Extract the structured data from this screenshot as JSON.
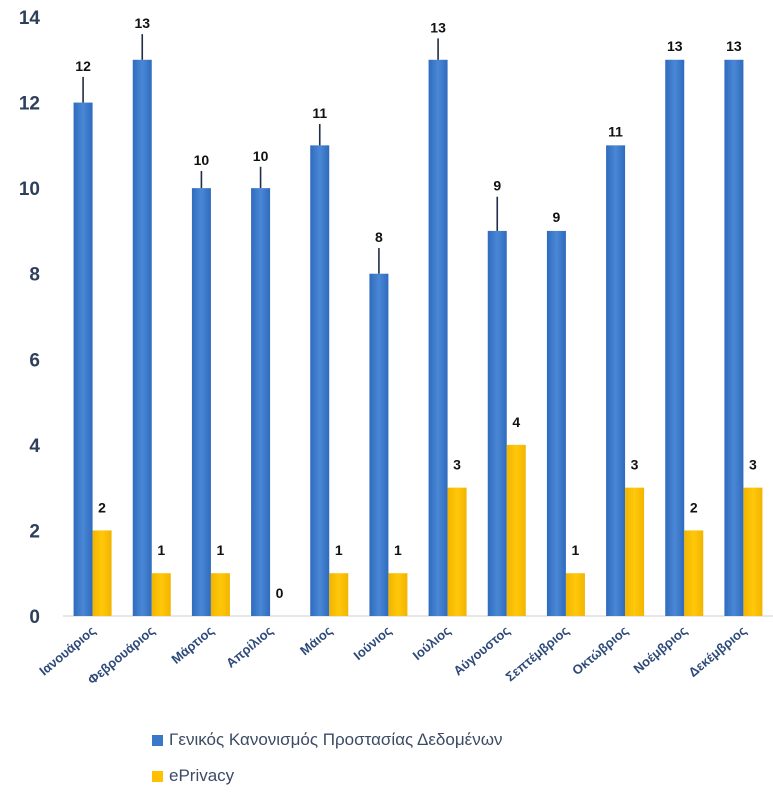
{
  "chart_data": {
    "type": "bar",
    "categories": [
      "Ιανουάριος",
      "Φεβρουάριος",
      "Μάρτιος",
      "Απρίλιος",
      "Μάιος",
      "Ιούνιος",
      "Ιούλιος",
      "Αύγουστος",
      "Σεπτέμβριος",
      "Οκτώβριος",
      "Νοέμβριος",
      "Δεκέμβριος"
    ],
    "series": [
      {
        "name": "Γενικός Κανονισμός Προστασίας Δεδομένων",
        "values": [
          12,
          13,
          10,
          10,
          11,
          8,
          13,
          9,
          9,
          11,
          13,
          13
        ],
        "color": "#3a78c9",
        "error_bars": [
          0.6,
          0.6,
          0.4,
          0.5,
          0.5,
          0.6,
          0.5,
          0.8,
          0,
          0,
          0,
          0
        ]
      },
      {
        "name": "ePrivacy",
        "values": [
          2,
          1,
          1,
          0,
          1,
          1,
          3,
          4,
          1,
          3,
          2,
          3
        ],
        "color": "#ffc000"
      }
    ],
    "ylim": [
      0,
      14
    ],
    "yticks": [
      0,
      2,
      4,
      6,
      8,
      10,
      12,
      14
    ],
    "grid": false,
    "legend_position": "bottom",
    "title": "",
    "xlabel": "",
    "ylabel": ""
  }
}
